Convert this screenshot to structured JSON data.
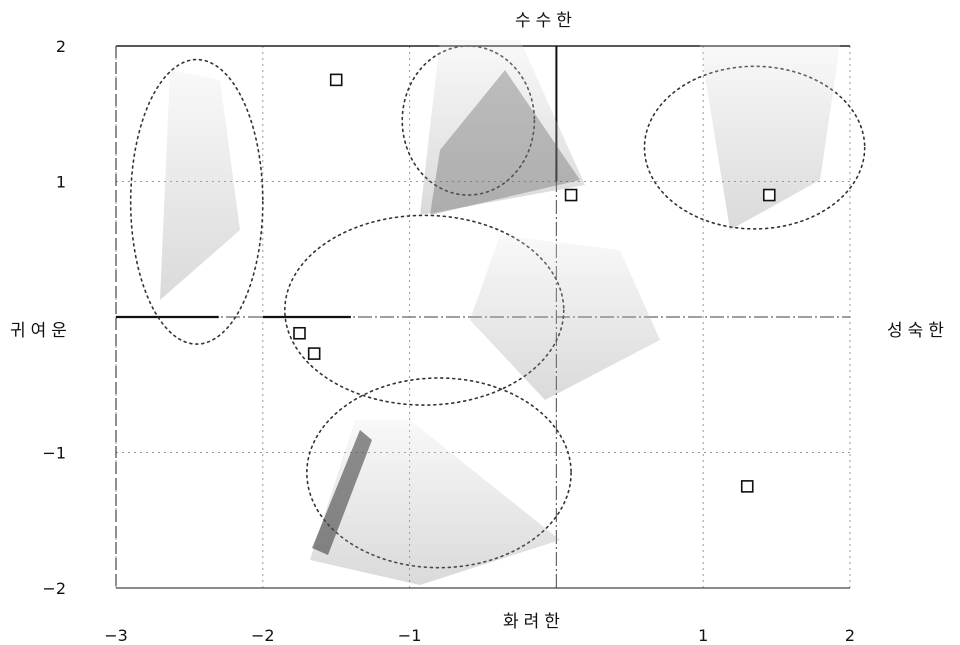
{
  "chart_data": {
    "type": "scatter",
    "title": "",
    "xlabel": "",
    "ylabel": "",
    "xlim": [
      -3,
      2
    ],
    "ylim": [
      -2,
      2
    ],
    "x_ticks": [
      -3,
      -2,
      -1,
      1,
      2
    ],
    "y_ticks": [
      2,
      1,
      -1,
      -2
    ],
    "x_tick_labels": [
      "−3",
      "−2",
      "−1",
      "1",
      "2"
    ],
    "y_tick_labels": [
      "2",
      "1",
      "−1",
      "−2"
    ],
    "grid": true,
    "pole_labels": {
      "top": "수수한",
      "bottom": "화려한",
      "left": "귀여운",
      "right": "성숙한"
    },
    "markers": [
      {
        "x": -1.5,
        "y": 1.75
      },
      {
        "x": 0.1,
        "y": 0.9
      },
      {
        "x": 1.45,
        "y": 0.9
      },
      {
        "x": -1.75,
        "y": -0.12
      },
      {
        "x": -1.65,
        "y": -0.27
      },
      {
        "x": 1.3,
        "y": -1.25
      }
    ],
    "clusters": [
      {
        "cx": -2.45,
        "cy": 0.85,
        "rx": 0.45,
        "ry": 1.05
      },
      {
        "cx": -0.6,
        "cy": 1.45,
        "rx": 0.45,
        "ry": 0.55
      },
      {
        "cx": 1.35,
        "cy": 1.25,
        "rx": 0.75,
        "ry": 0.6
      },
      {
        "cx": -0.9,
        "cy": 0.05,
        "rx": 0.95,
        "ry": 0.7
      },
      {
        "cx": -0.8,
        "cy": -1.15,
        "rx": 0.9,
        "ry": 0.7
      }
    ]
  }
}
